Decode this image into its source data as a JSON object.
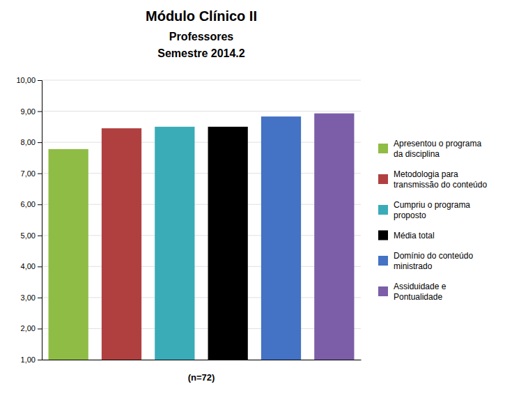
{
  "chart_data": {
    "type": "bar",
    "title": "Módulo Clínico II",
    "subtitle": [
      "Professores",
      "Semestre 2014.2"
    ],
    "xlabel": "(n=72)",
    "categories": [
      "Apresentou o programa\nda disciplina",
      "Metodologia para\ntransmissão do conteúdo",
      "Cumpriu o programa\nproposto",
      "Média total",
      "Domínio do conteúdo\nministrado",
      "Assiduidade e\nPontualidade"
    ],
    "values": [
      7.78,
      8.45,
      8.5,
      8.5,
      8.83,
      8.93
    ],
    "colors": [
      "#8fbc45",
      "#b04040",
      "#3aacb8",
      "#000000",
      "#4472c4",
      "#7b5ea7"
    ],
    "ylim": [
      1.0,
      10.0
    ],
    "yticks": [
      {
        "value": 1.0,
        "label": "1,00"
      },
      {
        "value": 2.0,
        "label": "2,00"
      },
      {
        "value": 3.0,
        "label": "3,00"
      },
      {
        "value": 4.0,
        "label": "4,00"
      },
      {
        "value": 5.0,
        "label": "5,00"
      },
      {
        "value": 6.0,
        "label": "6,00"
      },
      {
        "value": 7.0,
        "label": "7,00"
      },
      {
        "value": 8.0,
        "label": "8,00"
      },
      {
        "value": 9.0,
        "label": "9,00"
      },
      {
        "value": 10.0,
        "label": "10,00"
      }
    ],
    "grid": true,
    "legend": "right",
    "tick_labels": "y"
  }
}
